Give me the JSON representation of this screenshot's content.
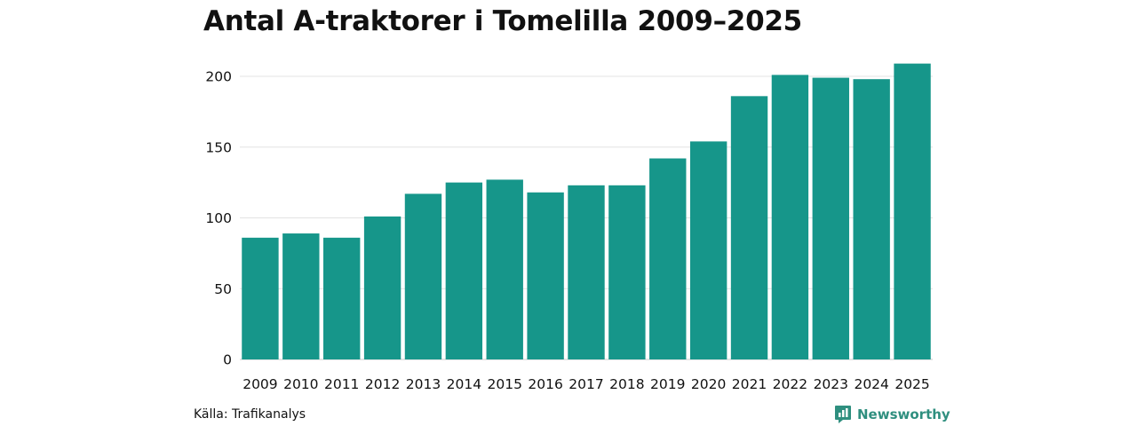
{
  "chart_data": {
    "type": "bar",
    "title": "Antal A-traktorer i Tomelilla 2009–2025",
    "categories": [
      "2009",
      "2010",
      "2011",
      "2012",
      "2013",
      "2014",
      "2015",
      "2016",
      "2017",
      "2018",
      "2019",
      "2020",
      "2021",
      "2022",
      "2023",
      "2024",
      "2025"
    ],
    "values": [
      86,
      89,
      86,
      101,
      117,
      125,
      127,
      118,
      123,
      123,
      142,
      154,
      186,
      201,
      199,
      198,
      209
    ],
    "yticks": [
      0,
      50,
      100,
      150,
      200
    ],
    "ylim": [
      0,
      215
    ],
    "xlabel": "",
    "ylabel": "",
    "grid": true,
    "bar_color": "#16968a"
  },
  "footer": {
    "source": "Källa: Trafikanalys",
    "brand": "Newsworthy",
    "brand_icon": "bar-chart-logo-icon",
    "brand_color": "#2f8f7f"
  }
}
